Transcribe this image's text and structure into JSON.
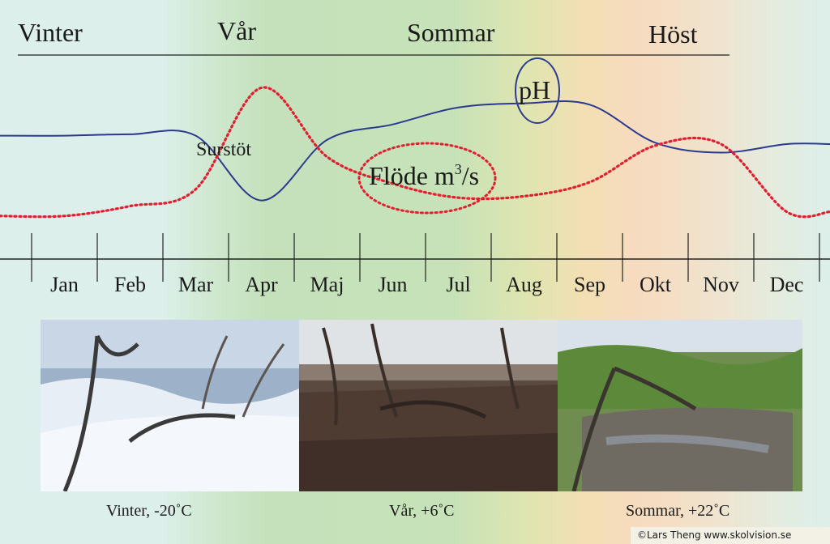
{
  "seasons": {
    "vinter": "Vinter",
    "var": "Vår",
    "sommar": "Sommar",
    "host": "Höst"
  },
  "annotations": {
    "ph": "pH",
    "surstot": "Surstöt",
    "flode": "Flöde m",
    "flode_sup": "3",
    "flode_tail": "/s"
  },
  "chart_data": {
    "type": "line",
    "categories": [
      "Jan",
      "Feb",
      "Mar",
      "Apr",
      "Maj",
      "Jun",
      "Jul",
      "Aug",
      "Sep",
      "Okt",
      "Nov",
      "Dec"
    ],
    "series": [
      {
        "name": "pH",
        "color": "#2b3a8f",
        "style": "solid",
        "values": [
          0.6,
          0.61,
          0.6,
          0.14,
          0.57,
          0.68,
          0.8,
          0.83,
          0.82,
          0.55,
          0.48,
          0.54
        ]
      },
      {
        "name": "Flöde m³/s",
        "color": "#e02030",
        "style": "dotted",
        "values": [
          0.03,
          0.1,
          0.22,
          0.94,
          0.45,
          0.26,
          0.16,
          0.17,
          0.27,
          0.53,
          0.54,
          0.06
        ]
      }
    ],
    "xlabel": "",
    "ylabel": ""
  },
  "photos": [
    {
      "caption": "Vinter, -20˚C",
      "scene": "winter"
    },
    {
      "caption": "Vår, +6˚C",
      "scene": "spring"
    },
    {
      "caption": "Sommar, +22˚C",
      "scene": "summer"
    }
  ],
  "credit": "©Lars Theng   www.skolvision.se"
}
